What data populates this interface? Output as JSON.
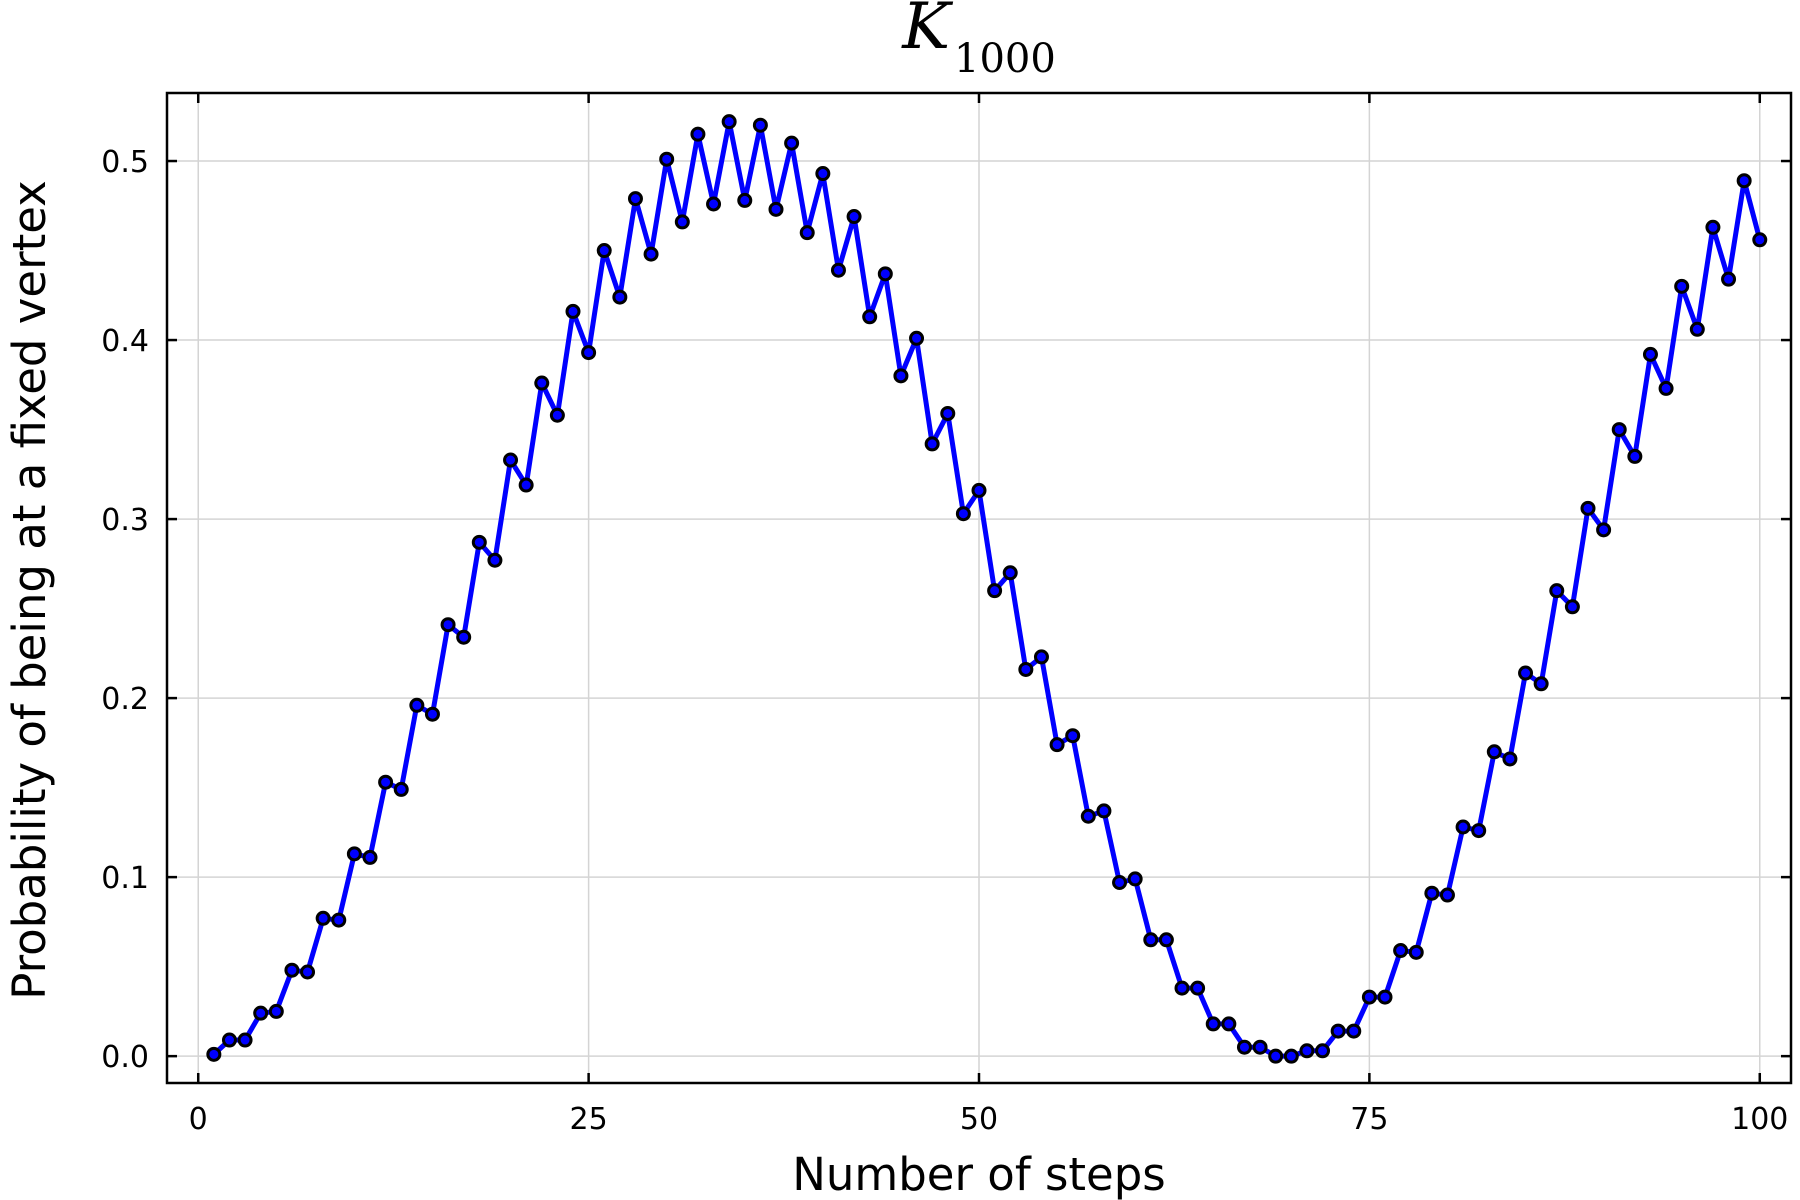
{
  "chart_data": {
    "type": "line",
    "title": "K",
    "title_subscript": "1000",
    "xlabel": "Number of steps",
    "ylabel": "Probability of being at a fixed vertex",
    "xlim": [
      -2,
      102
    ],
    "ylim": [
      -0.015,
      0.538
    ],
    "xticks": [
      0,
      25,
      50,
      75,
      100
    ],
    "xtick_labels": [
      "0",
      "25",
      "50",
      "75",
      "100"
    ],
    "yticks": [
      0.0,
      0.1,
      0.2,
      0.3,
      0.4,
      0.5
    ],
    "ytick_labels": [
      "0.0",
      "0.1",
      "0.2",
      "0.3",
      "0.4",
      "0.5"
    ],
    "grid": true,
    "legend": "none",
    "series": [
      {
        "color": "#0000ff",
        "marker_color": "#000000",
        "x": [
          1,
          2,
          3,
          4,
          5,
          6,
          7,
          8,
          9,
          10,
          11,
          12,
          13,
          14,
          15,
          16,
          17,
          18,
          19,
          20,
          21,
          22,
          23,
          24,
          25,
          26,
          27,
          28,
          29,
          30,
          31,
          32,
          33,
          34,
          35,
          36,
          37,
          38,
          39,
          40,
          41,
          42,
          43,
          44,
          45,
          46,
          47,
          48,
          49,
          50,
          51,
          52,
          53,
          54,
          55,
          56,
          57,
          58,
          59,
          60,
          61,
          62,
          63,
          64,
          65,
          66,
          67,
          68,
          69,
          70,
          71,
          72,
          73,
          74,
          75,
          76,
          77,
          78,
          79,
          80,
          81,
          82,
          83,
          84,
          85,
          86,
          87,
          88,
          89,
          90,
          91,
          92,
          93,
          94,
          95,
          96,
          97,
          98,
          99,
          100
        ],
        "y": [
          0.001,
          0.009,
          0.009,
          0.024,
          0.025,
          0.048,
          0.047,
          0.077,
          0.076,
          0.113,
          0.111,
          0.153,
          0.149,
          0.196,
          0.191,
          0.241,
          0.234,
          0.287,
          0.277,
          0.333,
          0.319,
          0.376,
          0.358,
          0.416,
          0.393,
          0.45,
          0.424,
          0.479,
          0.448,
          0.501,
          0.466,
          0.515,
          0.476,
          0.522,
          0.478,
          0.52,
          0.473,
          0.51,
          0.46,
          0.493,
          0.439,
          0.469,
          0.413,
          0.437,
          0.38,
          0.401,
          0.342,
          0.359,
          0.303,
          0.316,
          0.26,
          0.27,
          0.216,
          0.223,
          0.174,
          0.179,
          0.134,
          0.137,
          0.097,
          0.099,
          0.065,
          0.065,
          0.038,
          0.038,
          0.018,
          0.018,
          0.005,
          0.005,
          0.0,
          0.0,
          0.003,
          0.003,
          0.014,
          0.014,
          0.033,
          0.033,
          0.059,
          0.058,
          0.091,
          0.09,
          0.128,
          0.126,
          0.17,
          0.166,
          0.214,
          0.208,
          0.26,
          0.251,
          0.306,
          0.294,
          0.35,
          0.335,
          0.392,
          0.373,
          0.43,
          0.406,
          0.463,
          0.434,
          0.489,
          0.456
        ]
      }
    ]
  }
}
